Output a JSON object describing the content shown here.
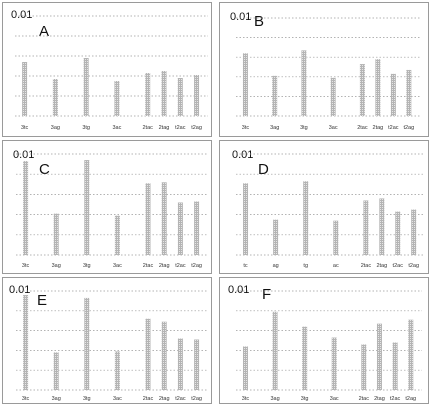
{
  "colors": {
    "bar": "#b4b4b4",
    "bar_stripe": "#e6e6e6",
    "grid": "#9a9a9a",
    "border": "#9a9a9a",
    "tick_text": "#333333"
  },
  "chart_data": [
    {
      "type": "bar",
      "panel": "A",
      "y_top_label": "0.01",
      "ylim": [
        0,
        0.01
      ],
      "grid": "dotted",
      "categories": [
        "3tc",
        "3ag",
        "3tg",
        "3ac",
        "2tac",
        "2tag",
        "t2ac",
        "t2ag"
      ],
      "values": [
        0.0054,
        0.0037,
        0.0058,
        0.0035,
        0.0043,
        0.0045,
        0.0038,
        0.0041
      ]
    },
    {
      "type": "bar",
      "panel": "B",
      "y_top_label": "0.01",
      "ylim": [
        0,
        0.01
      ],
      "grid": "dotted",
      "categories": [
        "3tc",
        "3ag",
        "3tg",
        "3ac",
        "2tac",
        "2tag",
        "t2ac",
        "t2ag"
      ],
      "values": [
        0.0064,
        0.0041,
        0.0067,
        0.0039,
        0.0053,
        0.0058,
        0.0043,
        0.0047
      ]
    },
    {
      "type": "bar",
      "panel": "C",
      "y_top_label": "0.01",
      "ylim": [
        0,
        0.01
      ],
      "grid": "dotted",
      "categories": [
        "3tc",
        "3ag",
        "3tg",
        "3ac",
        "2tac",
        "2tag",
        "t2ac",
        "t2ag"
      ],
      "values": [
        0.0093,
        0.0041,
        0.0094,
        0.0039,
        0.0071,
        0.0072,
        0.0052,
        0.0053
      ]
    },
    {
      "type": "bar",
      "panel": "D",
      "y_top_label": "0.01",
      "ylim": [
        0,
        0.01
      ],
      "grid": "dotted",
      "categories": [
        "tc",
        "ag",
        "tg",
        "ac",
        "2tac",
        "2tag",
        "t2ac",
        "t2ag"
      ],
      "values": [
        0.0071,
        0.0035,
        0.0073,
        0.0034,
        0.0054,
        0.0056,
        0.0043,
        0.0045
      ]
    },
    {
      "type": "bar",
      "panel": "E",
      "y_top_label": "0.01",
      "ylim": [
        0,
        0.01
      ],
      "grid": "dotted",
      "categories": [
        "3tc",
        "3ag",
        "3tg",
        "3ac",
        "2tac",
        "2tag",
        "t2ac",
        "t2ag"
      ],
      "values": [
        0.0096,
        0.0038,
        0.0093,
        0.0039,
        0.0072,
        0.0069,
        0.0052,
        0.0051
      ]
    },
    {
      "type": "bar",
      "panel": "F",
      "y_top_label": "0.01",
      "ylim": [
        0,
        0.01
      ],
      "grid": "dotted",
      "categories": [
        "3tc",
        "3ag",
        "3tg",
        "3ac",
        "2tac",
        "2tag",
        "t2ac",
        "t2ag"
      ],
      "values": [
        0.0044,
        0.0079,
        0.0064,
        0.0053,
        0.0046,
        0.0067,
        0.0048,
        0.0071
      ]
    }
  ]
}
